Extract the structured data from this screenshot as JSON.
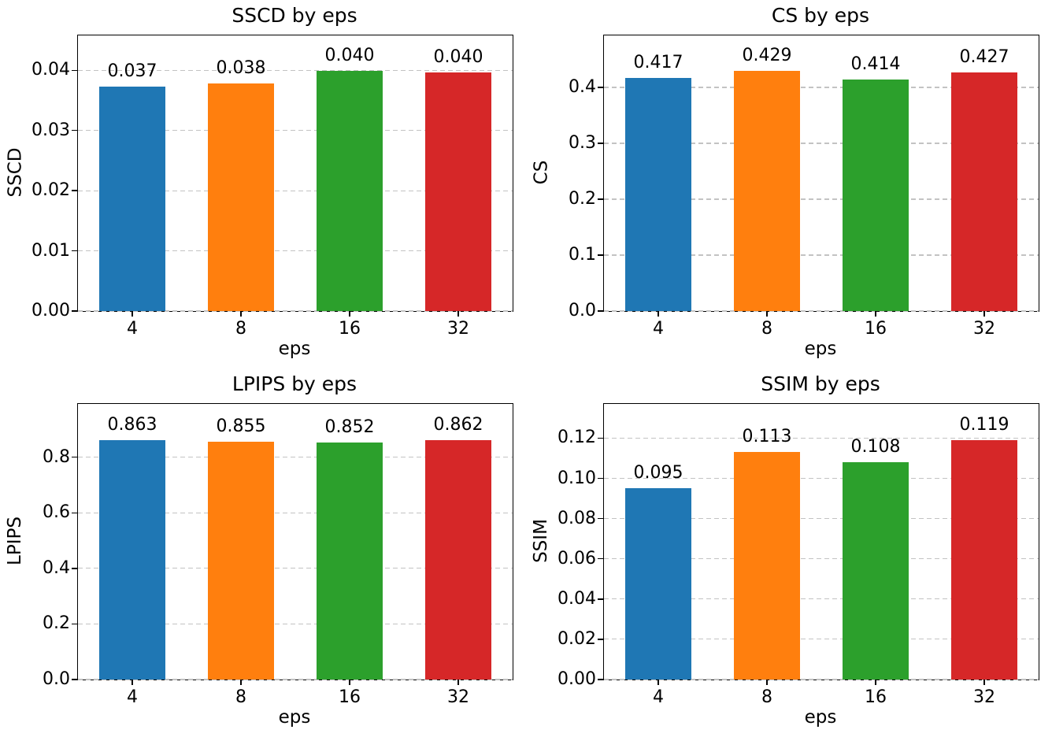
{
  "figure": {
    "background": "#ffffff",
    "grid_color": "#c3c3c3",
    "axis_color": "#000000",
    "text_color": "#000000",
    "bar_palette": [
      "#1f77b4",
      "#ff7f0e",
      "#2ca02c",
      "#d62728"
    ]
  },
  "chart_data": [
    {
      "type": "bar",
      "title": "SSCD by eps",
      "xlabel": "eps",
      "ylabel": "SSCD",
      "categories": [
        "4",
        "8",
        "16",
        "32"
      ],
      "values": [
        0.0373,
        0.0378,
        0.0399,
        0.0396
      ],
      "bar_value_labels": [
        "0.037",
        "0.038",
        "0.040",
        "0.040"
      ],
      "bar_colors": [
        "#1f77b4",
        "#ff7f0e",
        "#2ca02c",
        "#d62728"
      ],
      "ylim": [
        0,
        0.0458
      ],
      "yticks": [
        0,
        0.01,
        0.02,
        0.03,
        0.04
      ],
      "ytick_labels": [
        "0.00",
        "0.01",
        "0.02",
        "0.03",
        "0.04"
      ],
      "grid": "horizontal-dashed",
      "legend": null
    },
    {
      "type": "bar",
      "title": "CS by eps",
      "xlabel": "eps",
      "ylabel": "CS",
      "categories": [
        "4",
        "8",
        "16",
        "32"
      ],
      "values": [
        0.417,
        0.429,
        0.414,
        0.427
      ],
      "bar_value_labels": [
        "0.417",
        "0.429",
        "0.414",
        "0.427"
      ],
      "bar_colors": [
        "#1f77b4",
        "#ff7f0e",
        "#2ca02c",
        "#d62728"
      ],
      "ylim": [
        0,
        0.493
      ],
      "yticks": [
        0,
        0.1,
        0.2,
        0.3,
        0.4
      ],
      "ytick_labels": [
        "0.0",
        "0.1",
        "0.2",
        "0.3",
        "0.4"
      ],
      "grid": "horizontal-dashed",
      "legend": null
    },
    {
      "type": "bar",
      "title": "LPIPS by eps",
      "xlabel": "eps",
      "ylabel": "LPIPS",
      "categories": [
        "4",
        "8",
        "16",
        "32"
      ],
      "values": [
        0.863,
        0.855,
        0.852,
        0.862
      ],
      "bar_value_labels": [
        "0.863",
        "0.855",
        "0.852",
        "0.862"
      ],
      "bar_colors": [
        "#1f77b4",
        "#ff7f0e",
        "#2ca02c",
        "#d62728"
      ],
      "ylim": [
        0,
        0.992
      ],
      "yticks": [
        0,
        0.2,
        0.4,
        0.6,
        0.8
      ],
      "ytick_labels": [
        "0.0",
        "0.2",
        "0.4",
        "0.6",
        "0.8"
      ],
      "grid": "horizontal-dashed",
      "legend": null
    },
    {
      "type": "bar",
      "title": "SSIM by eps",
      "xlabel": "eps",
      "ylabel": "SSIM",
      "categories": [
        "4",
        "8",
        "16",
        "32"
      ],
      "values": [
        0.095,
        0.113,
        0.108,
        0.119
      ],
      "bar_value_labels": [
        "0.095",
        "0.113",
        "0.108",
        "0.119"
      ],
      "bar_colors": [
        "#1f77b4",
        "#ff7f0e",
        "#2ca02c",
        "#d62728"
      ],
      "ylim": [
        0,
        0.137
      ],
      "yticks": [
        0,
        0.02,
        0.04,
        0.06,
        0.08,
        0.1,
        0.12
      ],
      "ytick_labels": [
        "0.00",
        "0.02",
        "0.04",
        "0.06",
        "0.08",
        "0.10",
        "0.12"
      ],
      "grid": "horizontal-dashed",
      "legend": null
    }
  ]
}
